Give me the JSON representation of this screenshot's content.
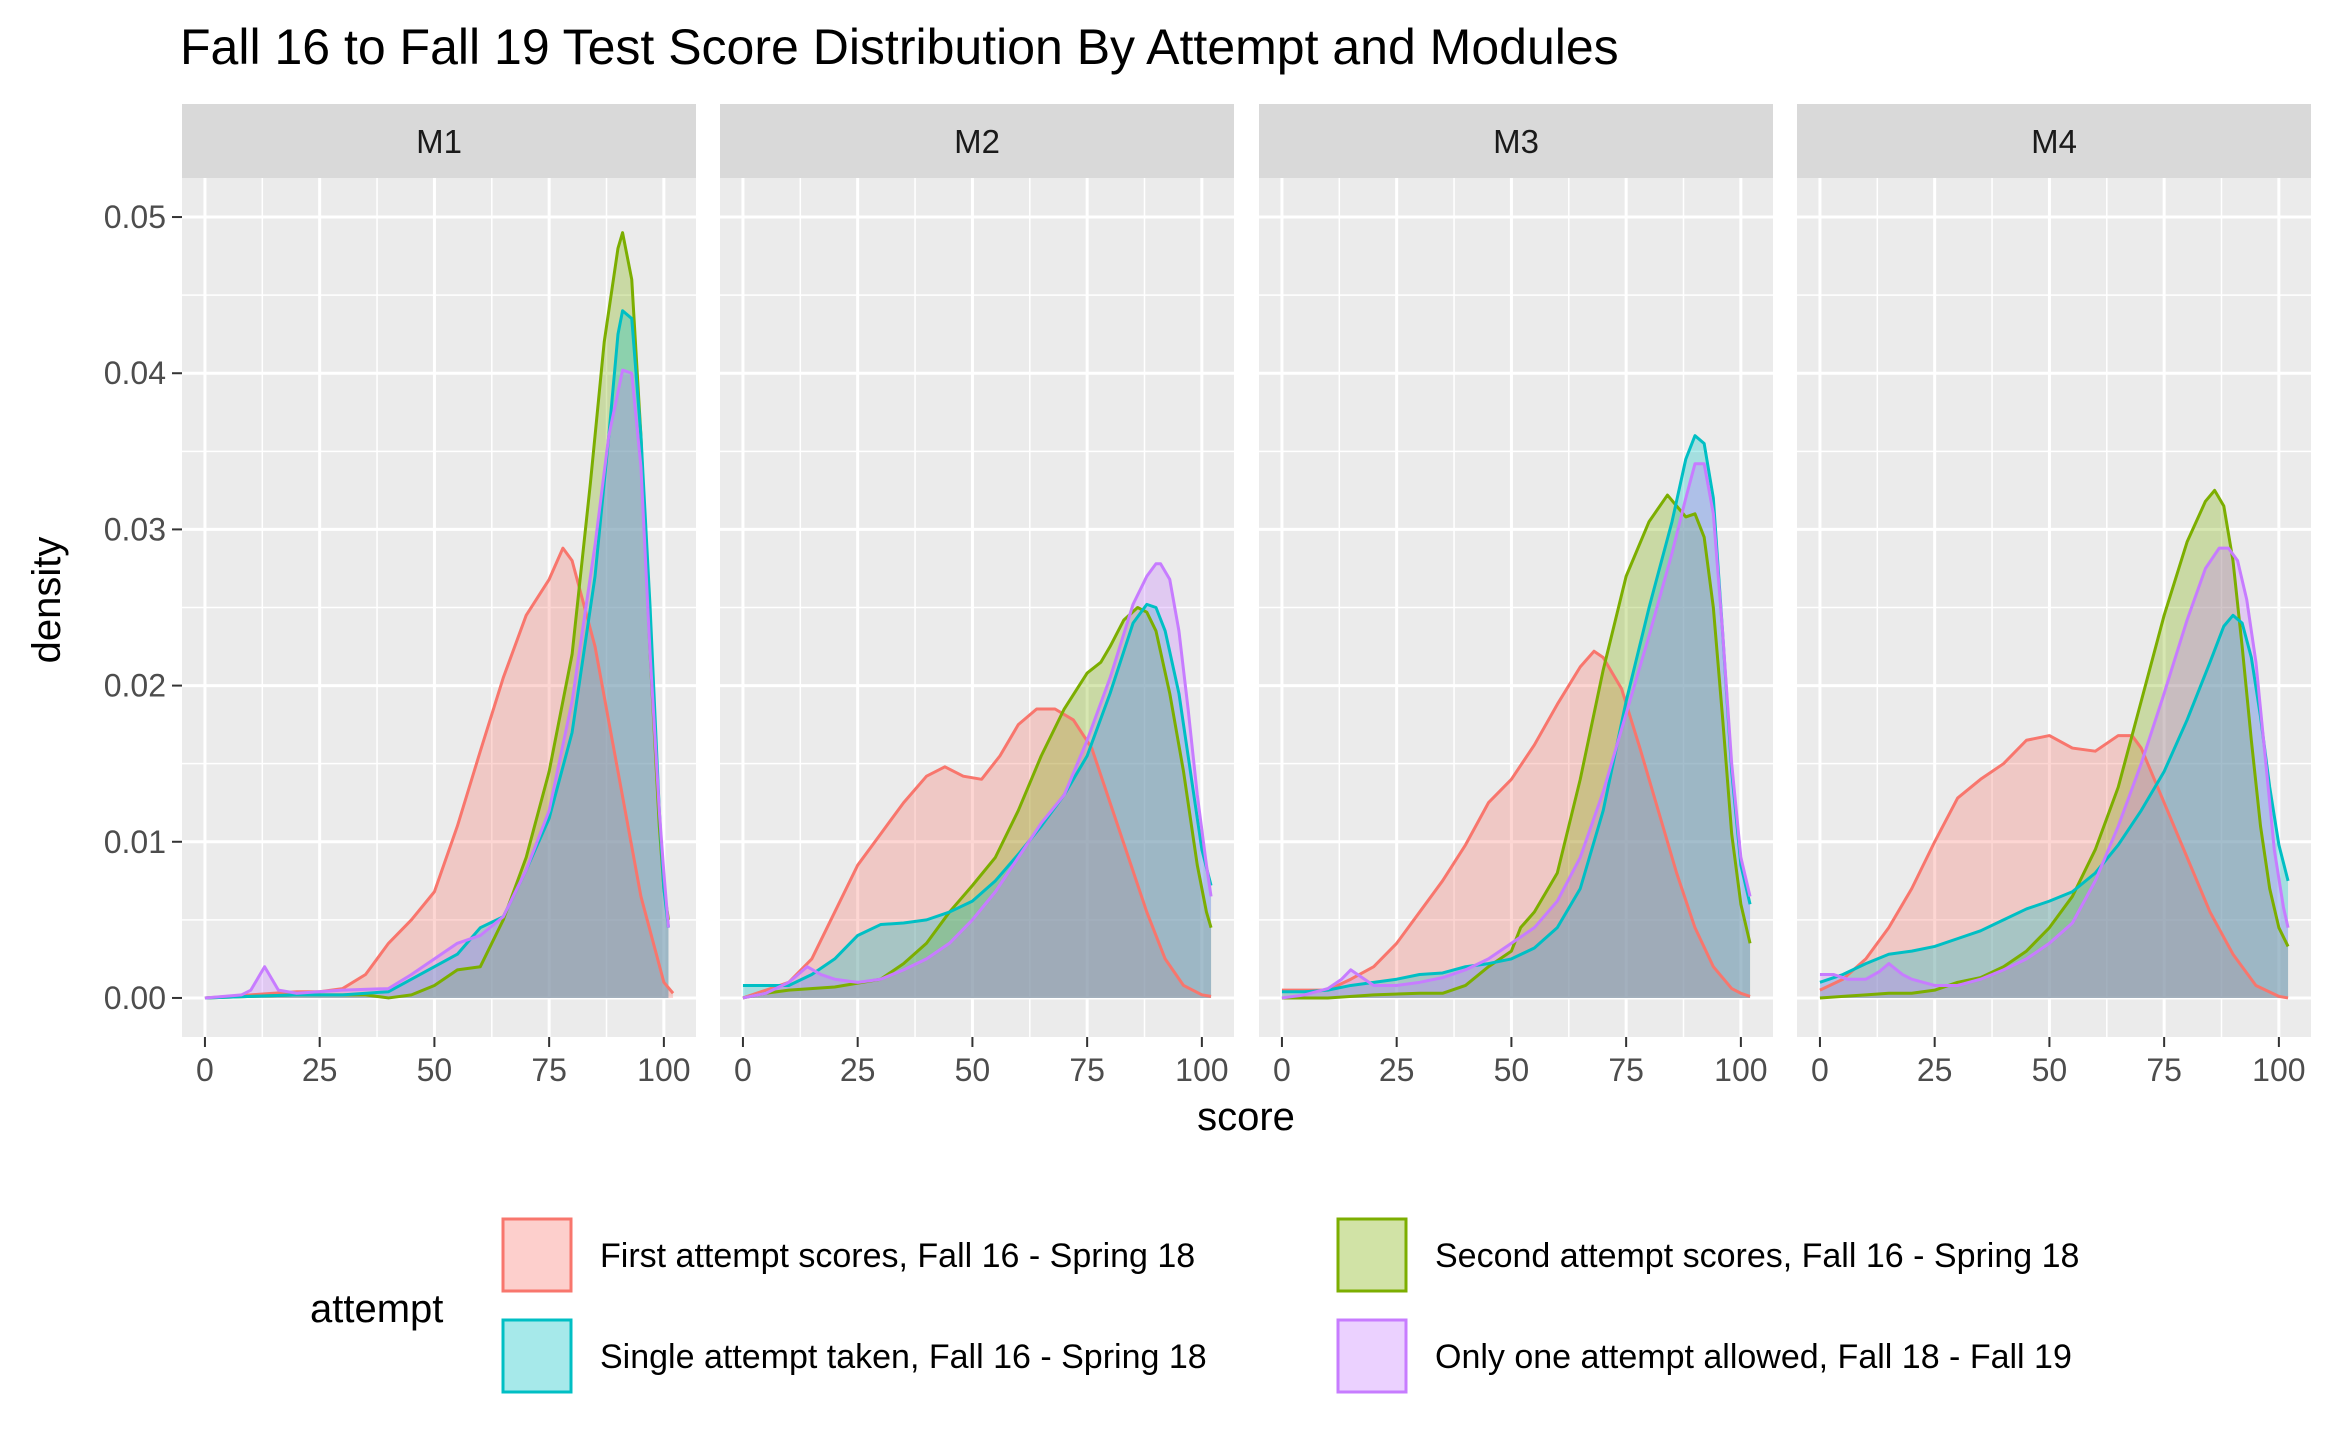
{
  "chart_data": {
    "type": "area",
    "title": "Fall 16 to Fall 19 Test Score Distribution By Attempt and Modules",
    "xlabel": "score",
    "ylabel": "density",
    "xlim": [
      0,
      102
    ],
    "ylim": [
      0,
      0.05
    ],
    "x_ticks": [
      0,
      25,
      50,
      75,
      100
    ],
    "x_tick_labels": [
      "0",
      "25",
      "50",
      "75",
      "100"
    ],
    "y_ticks": [
      0,
      0.01,
      0.02,
      0.03,
      0.04,
      0.05
    ],
    "y_tick_labels": [
      "0.00",
      "0.01",
      "0.02",
      "0.03",
      "0.04",
      "0.05"
    ],
    "grid": true,
    "legend": {
      "title": "attempt",
      "position": "bottom",
      "entries": [
        {
          "key": "first",
          "label": "First attempt scores, Fall 16 - Spring 18",
          "color": "#F8766D"
        },
        {
          "key": "second",
          "label": "Second attempt scores, Fall 16 - Spring 18",
          "color": "#7CAE00"
        },
        {
          "key": "single",
          "label": "Single attempt taken, Fall 16 - Spring 18",
          "color": "#00BFC4"
        },
        {
          "key": "only",
          "label": "Only one attempt allowed, Fall 18 - Fall 19",
          "color": "#C77CFF"
        }
      ]
    },
    "panels": [
      {
        "label": "M1",
        "series": [
          {
            "key": "first",
            "x": [
              0,
              5,
              10,
              15,
              20,
              25,
              30,
              35,
              40,
              45,
              50,
              55,
              60,
              65,
              70,
              75,
              78,
              80,
              85,
              90,
              95,
              100,
              102
            ],
            "y": [
              0.0,
              0.0001,
              0.0002,
              0.0003,
              0.0004,
              0.0004,
              0.0006,
              0.0015,
              0.0035,
              0.005,
              0.0068,
              0.011,
              0.0158,
              0.0205,
              0.0245,
              0.0268,
              0.0288,
              0.028,
              0.0225,
              0.0145,
              0.0065,
              0.001,
              0.0003
            ]
          },
          {
            "key": "second",
            "x": [
              0,
              10,
              20,
              30,
              35,
              40,
              45,
              50,
              55,
              60,
              65,
              70,
              75,
              80,
              84,
              87,
              90,
              91,
              93,
              95,
              97,
              99,
              100,
              101
            ],
            "y": [
              0.0,
              0.0001,
              0.0002,
              0.0002,
              0.0002,
              0.0,
              0.0002,
              0.0008,
              0.0018,
              0.002,
              0.005,
              0.009,
              0.0145,
              0.022,
              0.033,
              0.042,
              0.048,
              0.049,
              0.046,
              0.036,
              0.022,
              0.011,
              0.007,
              0.005
            ]
          },
          {
            "key": "single",
            "x": [
              0,
              10,
              20,
              30,
              40,
              45,
              50,
              55,
              60,
              65,
              70,
              75,
              80,
              85,
              88,
              90,
              91,
              93,
              95,
              97,
              99,
              100,
              101
            ],
            "y": [
              0.0,
              0.0001,
              0.0002,
              0.0002,
              0.0004,
              0.0012,
              0.002,
              0.0028,
              0.0045,
              0.0052,
              0.0082,
              0.0115,
              0.017,
              0.027,
              0.036,
              0.0425,
              0.044,
              0.0435,
              0.036,
              0.025,
              0.012,
              0.007,
              0.0045
            ]
          },
          {
            "key": "only",
            "x": [
              0,
              8,
              10,
              12,
              13,
              14,
              16,
              20,
              30,
              40,
              45,
              50,
              55,
              60,
              65,
              70,
              75,
              80,
              85,
              88,
              91,
              93,
              95,
              97,
              99,
              100,
              101
            ],
            "y": [
              0.0,
              0.0002,
              0.0005,
              0.0015,
              0.002,
              0.0015,
              0.0005,
              0.0003,
              0.0005,
              0.0006,
              0.0015,
              0.0025,
              0.0035,
              0.004,
              0.0052,
              0.0082,
              0.012,
              0.019,
              0.029,
              0.036,
              0.0402,
              0.04,
              0.034,
              0.022,
              0.012,
              0.008,
              0.0045
            ]
          }
        ]
      },
      {
        "label": "M2",
        "series": [
          {
            "key": "first",
            "x": [
              0,
              5,
              10,
              15,
              20,
              25,
              30,
              35,
              40,
              44,
              48,
              52,
              56,
              60,
              64,
              68,
              72,
              76,
              80,
              84,
              88,
              92,
              96,
              100,
              102
            ],
            "y": [
              0.0,
              0.0005,
              0.001,
              0.0025,
              0.0055,
              0.0085,
              0.0105,
              0.0125,
              0.0142,
              0.0148,
              0.0142,
              0.014,
              0.0155,
              0.0175,
              0.0185,
              0.0185,
              0.0178,
              0.016,
              0.0125,
              0.009,
              0.0055,
              0.0025,
              0.0008,
              0.0002,
              0.0001
            ]
          },
          {
            "key": "second",
            "x": [
              0,
              5,
              10,
              20,
              30,
              35,
              40,
              45,
              50,
              55,
              60,
              65,
              70,
              75,
              78,
              80,
              83,
              86,
              88,
              90,
              93,
              96,
              99,
              101,
              102
            ],
            "y": [
              0.0,
              0.0003,
              0.0005,
              0.0007,
              0.0012,
              0.0022,
              0.0035,
              0.0055,
              0.0072,
              0.009,
              0.012,
              0.0155,
              0.0185,
              0.0208,
              0.0215,
              0.0225,
              0.0242,
              0.025,
              0.0247,
              0.0235,
              0.0195,
              0.0145,
              0.0085,
              0.0055,
              0.0045
            ]
          },
          {
            "key": "single",
            "x": [
              0,
              5,
              10,
              15,
              20,
              25,
              30,
              35,
              40,
              45,
              50,
              55,
              60,
              65,
              70,
              75,
              80,
              85,
              88,
              90,
              92,
              95,
              98,
              100,
              102
            ],
            "y": [
              0.0008,
              0.0008,
              0.0008,
              0.0015,
              0.0025,
              0.004,
              0.0047,
              0.0048,
              0.005,
              0.0055,
              0.0062,
              0.0075,
              0.0092,
              0.011,
              0.013,
              0.0155,
              0.0195,
              0.024,
              0.0252,
              0.025,
              0.0235,
              0.0195,
              0.0135,
              0.0095,
              0.0072
            ]
          },
          {
            "key": "only",
            "x": [
              0,
              5,
              10,
              14,
              17,
              20,
              25,
              30,
              35,
              40,
              45,
              50,
              55,
              60,
              65,
              70,
              75,
              80,
              85,
              88,
              90,
              91,
              93,
              95,
              97,
              99,
              101,
              102
            ],
            "y": [
              0.0,
              0.0003,
              0.001,
              0.002,
              0.0015,
              0.0012,
              0.001,
              0.0012,
              0.0018,
              0.0025,
              0.0035,
              0.005,
              0.0068,
              0.009,
              0.0112,
              0.013,
              0.0165,
              0.0205,
              0.0252,
              0.027,
              0.0278,
              0.0278,
              0.0268,
              0.0235,
              0.0185,
              0.013,
              0.0085,
              0.0065
            ]
          }
        ]
      },
      {
        "label": "M3",
        "series": [
          {
            "key": "first",
            "x": [
              0,
              10,
              15,
              20,
              25,
              30,
              35,
              40,
              45,
              50,
              55,
              60,
              65,
              68,
              70,
              74,
              78,
              82,
              86,
              90,
              94,
              98,
              100,
              102
            ],
            "y": [
              0.0005,
              0.0005,
              0.0012,
              0.002,
              0.0035,
              0.0055,
              0.0075,
              0.0098,
              0.0125,
              0.014,
              0.0162,
              0.0188,
              0.0212,
              0.0222,
              0.0218,
              0.0198,
              0.016,
              0.012,
              0.008,
              0.0045,
              0.002,
              0.0006,
              0.0003,
              0.0001
            ]
          },
          {
            "key": "second",
            "x": [
              0,
              10,
              20,
              30,
              35,
              40,
              45,
              50,
              52,
              55,
              60,
              65,
              70,
              75,
              80,
              84,
              86,
              88,
              90,
              92,
              94,
              96,
              98,
              100,
              102
            ],
            "y": [
              0.0,
              0.0,
              0.0002,
              0.0003,
              0.0003,
              0.0008,
              0.002,
              0.003,
              0.0045,
              0.0055,
              0.008,
              0.014,
              0.021,
              0.027,
              0.0305,
              0.0322,
              0.0315,
              0.0308,
              0.031,
              0.0295,
              0.025,
              0.018,
              0.0105,
              0.006,
              0.0035
            ]
          },
          {
            "key": "single",
            "x": [
              0,
              5,
              10,
              15,
              20,
              25,
              30,
              35,
              40,
              45,
              50,
              55,
              60,
              65,
              70,
              75,
              80,
              85,
              88,
              90,
              92,
              94,
              96,
              98,
              100,
              102
            ],
            "y": [
              0.0004,
              0.0004,
              0.0005,
              0.0008,
              0.001,
              0.0012,
              0.0015,
              0.0016,
              0.002,
              0.0022,
              0.0025,
              0.0032,
              0.0045,
              0.007,
              0.012,
              0.019,
              0.025,
              0.0305,
              0.0345,
              0.036,
              0.0355,
              0.032,
              0.0235,
              0.0145,
              0.0085,
              0.006
            ]
          },
          {
            "key": "only",
            "x": [
              0,
              5,
              10,
              13,
              15,
              18,
              20,
              25,
              30,
              35,
              40,
              45,
              50,
              55,
              60,
              65,
              70,
              75,
              80,
              85,
              88,
              90,
              92,
              94,
              96,
              98,
              100,
              102
            ],
            "y": [
              0.0,
              0.0002,
              0.0006,
              0.0012,
              0.0018,
              0.0012,
              0.0008,
              0.0008,
              0.001,
              0.0013,
              0.0018,
              0.0025,
              0.0035,
              0.0045,
              0.0062,
              0.009,
              0.0132,
              0.0182,
              0.0232,
              0.0285,
              0.032,
              0.0342,
              0.0342,
              0.031,
              0.0235,
              0.015,
              0.009,
              0.0065
            ]
          }
        ]
      },
      {
        "label": "M4",
        "series": [
          {
            "key": "first",
            "x": [
              0,
              5,
              10,
              15,
              20,
              25,
              30,
              35,
              40,
              45,
              50,
              55,
              60,
              65,
              68,
              70,
              75,
              80,
              85,
              90,
              95,
              100,
              102
            ],
            "y": [
              0.0005,
              0.0012,
              0.0025,
              0.0045,
              0.007,
              0.01,
              0.0128,
              0.014,
              0.015,
              0.0165,
              0.0168,
              0.016,
              0.0158,
              0.0168,
              0.0168,
              0.016,
              0.0125,
              0.009,
              0.0055,
              0.0028,
              0.0008,
              0.0001,
              0.0
            ]
          },
          {
            "key": "second",
            "x": [
              0,
              5,
              10,
              15,
              20,
              25,
              30,
              35,
              40,
              45,
              50,
              55,
              60,
              65,
              70,
              75,
              80,
              84,
              86,
              88,
              90,
              92,
              94,
              96,
              98,
              100,
              102
            ],
            "y": [
              0.0,
              0.0001,
              0.0002,
              0.0003,
              0.0003,
              0.0005,
              0.001,
              0.0013,
              0.002,
              0.003,
              0.0045,
              0.0065,
              0.0095,
              0.0135,
              0.019,
              0.0245,
              0.0292,
              0.0318,
              0.0325,
              0.0315,
              0.028,
              0.0225,
              0.0165,
              0.011,
              0.007,
              0.0045,
              0.0033
            ]
          },
          {
            "key": "single",
            "x": [
              0,
              5,
              10,
              15,
              20,
              25,
              30,
              35,
              40,
              45,
              50,
              55,
              60,
              65,
              70,
              75,
              80,
              85,
              88,
              90,
              92,
              94,
              96,
              98,
              100,
              102
            ],
            "y": [
              0.001,
              0.0015,
              0.0022,
              0.0028,
              0.003,
              0.0033,
              0.0038,
              0.0043,
              0.005,
              0.0057,
              0.0062,
              0.0068,
              0.008,
              0.0098,
              0.012,
              0.0145,
              0.0178,
              0.0215,
              0.0238,
              0.0245,
              0.024,
              0.0218,
              0.018,
              0.0135,
              0.0098,
              0.0075
            ]
          },
          {
            "key": "only",
            "x": [
              0,
              3,
              6,
              10,
              13,
              15,
              18,
              20,
              25,
              30,
              35,
              40,
              45,
              50,
              55,
              60,
              65,
              70,
              75,
              80,
              84,
              87,
              89,
              91,
              93,
              95,
              97,
              99,
              101,
              102
            ],
            "y": [
              0.0015,
              0.0015,
              0.0012,
              0.0012,
              0.0017,
              0.0022,
              0.0015,
              0.0012,
              0.0008,
              0.0008,
              0.0012,
              0.0018,
              0.0025,
              0.0035,
              0.0048,
              0.0075,
              0.011,
              0.015,
              0.0195,
              0.0242,
              0.0275,
              0.0288,
              0.0288,
              0.028,
              0.0255,
              0.0215,
              0.0155,
              0.0095,
              0.0058,
              0.0045
            ]
          }
        ]
      }
    ]
  }
}
